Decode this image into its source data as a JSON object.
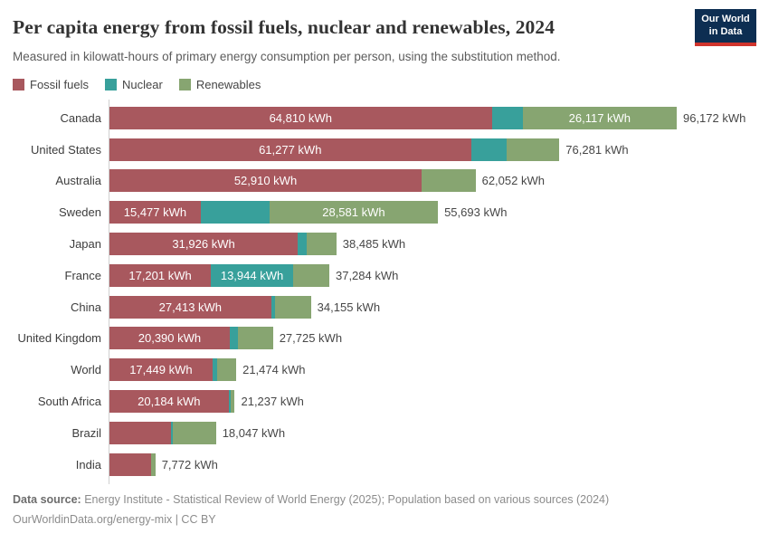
{
  "header": {
    "title": "Per capita energy from fossil fuels, nuclear and renewables, 2024",
    "subtitle": "Measured in kilowatt-hours of primary energy consumption per person, using the substitution method.",
    "logo_line1": "Our World",
    "logo_line2": "in Data"
  },
  "chart_data": {
    "type": "bar",
    "orientation": "horizontal",
    "stacked": true,
    "unit": "kWh",
    "xmax": 96172,
    "grid": false,
    "legend_position": "top",
    "colors": {
      "fossil": "#a8585e",
      "nuclear": "#38a09b",
      "renewables": "#87a571"
    },
    "legend": [
      {
        "key": "fossil",
        "label": "Fossil fuels"
      },
      {
        "key": "nuclear",
        "label": "Nuclear"
      },
      {
        "key": "renewables",
        "label": "Renewables"
      }
    ],
    "rows": [
      {
        "entity": "Canada",
        "fossil": 64810,
        "nuclear": 5245,
        "renewables": 26117,
        "total": 96172,
        "fossil_label": "64,810 kWh",
        "nuclear_label": null,
        "renewables_label": "26,117 kWh",
        "total_label": "96,172 kWh"
      },
      {
        "entity": "United States",
        "fossil": 61277,
        "nuclear": 6000,
        "renewables": 9004,
        "total": 76281,
        "fossil_label": "61,277 kWh",
        "nuclear_label": null,
        "renewables_label": null,
        "total_label": "76,281 kWh"
      },
      {
        "entity": "Australia",
        "fossil": 52910,
        "nuclear": 0,
        "renewables": 9142,
        "total": 62052,
        "fossil_label": "52,910 kWh",
        "nuclear_label": null,
        "renewables_label": null,
        "total_label": "62,052 kWh"
      },
      {
        "entity": "Sweden",
        "fossil": 15477,
        "nuclear": 11635,
        "renewables": 28581,
        "total": 55693,
        "fossil_label": "15,477 kWh",
        "nuclear_label": null,
        "renewables_label": "28,581 kWh",
        "total_label": "55,693 kWh"
      },
      {
        "entity": "Japan",
        "fossil": 31926,
        "nuclear": 1600,
        "renewables": 4959,
        "total": 38485,
        "fossil_label": "31,926 kWh",
        "nuclear_label": null,
        "renewables_label": null,
        "total_label": "38,485 kWh"
      },
      {
        "entity": "France",
        "fossil": 17201,
        "nuclear": 13944,
        "renewables": 6139,
        "total": 37284,
        "fossil_label": "17,201 kWh",
        "nuclear_label": "13,944 kWh",
        "renewables_label": null,
        "total_label": "37,284 kWh"
      },
      {
        "entity": "China",
        "fossil": 27413,
        "nuclear": 700,
        "renewables": 6042,
        "total": 34155,
        "fossil_label": "27,413 kWh",
        "nuclear_label": null,
        "renewables_label": null,
        "total_label": "34,155 kWh"
      },
      {
        "entity": "United Kingdom",
        "fossil": 20390,
        "nuclear": 1350,
        "renewables": 5985,
        "total": 27725,
        "fossil_label": "20,390 kWh",
        "nuclear_label": null,
        "renewables_label": null,
        "total_label": "27,725 kWh"
      },
      {
        "entity": "World",
        "fossil": 17449,
        "nuclear": 760,
        "renewables": 3265,
        "total": 21474,
        "fossil_label": "17,449 kWh",
        "nuclear_label": null,
        "renewables_label": null,
        "total_label": "21,474 kWh"
      },
      {
        "entity": "South Africa",
        "fossil": 20184,
        "nuclear": 350,
        "renewables": 703,
        "total": 21237,
        "fossil_label": "20,184 kWh",
        "nuclear_label": null,
        "renewables_label": null,
        "total_label": "21,237 kWh"
      },
      {
        "entity": "Brazil",
        "fossil": 10430,
        "nuclear": 230,
        "renewables": 7387,
        "total": 18047,
        "fossil_label": null,
        "nuclear_label": null,
        "renewables_label": null,
        "total_label": "18,047 kWh"
      },
      {
        "entity": "India",
        "fossil": 7100,
        "nuclear": 0,
        "renewables": 672,
        "total": 7772,
        "fossil_label": null,
        "nuclear_label": null,
        "renewables_label": null,
        "total_label": "7,772 kWh"
      }
    ]
  },
  "footer": {
    "data_source_label": "Data source:",
    "data_source_text": " Energy Institute - Statistical Review of World Energy (2025); Population based on various sources (2024)",
    "url": "OurWorldinData.org/energy-mix",
    "license": " | CC BY"
  }
}
